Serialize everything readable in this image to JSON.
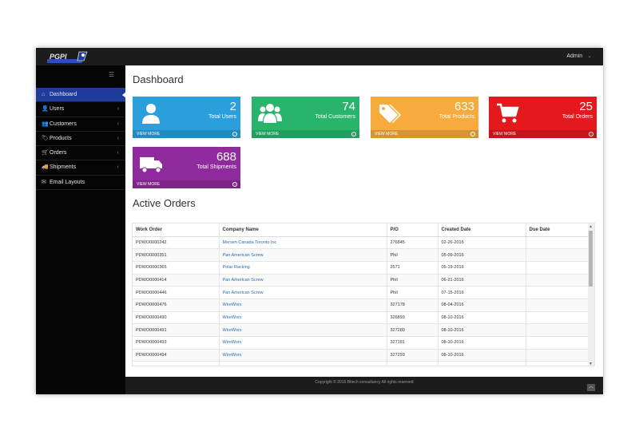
{
  "header": {
    "user_label": "Admin",
    "user_caret": "⌄"
  },
  "sidebar": {
    "items": [
      {
        "label": "Dashboard",
        "icon": "home-icon",
        "glyph": "⌂",
        "active": true,
        "chevron": ""
      },
      {
        "label": "Users",
        "icon": "user-icon",
        "glyph": "👤",
        "active": false,
        "chevron": "‹"
      },
      {
        "label": "Customers",
        "icon": "users-icon",
        "glyph": "👥",
        "active": false,
        "chevron": "‹"
      },
      {
        "label": "Products",
        "icon": "tag-icon",
        "glyph": "🏷",
        "active": false,
        "chevron": "‹"
      },
      {
        "label": "Orders",
        "icon": "cart-icon",
        "glyph": "🛒",
        "active": false,
        "chevron": "‹"
      },
      {
        "label": "Shipments",
        "icon": "truck-icon",
        "glyph": "🚚",
        "active": false,
        "chevron": "‹"
      },
      {
        "label": "Email Layouts",
        "icon": "email-icon",
        "glyph": "✉",
        "active": false,
        "chevron": ""
      }
    ]
  },
  "main": {
    "page_title": "Dashboard",
    "tiles": [
      {
        "value": "2",
        "label": "Total Users",
        "footer": "VIEW MORE",
        "color": "#2a9fdc",
        "icon": "user-icon"
      },
      {
        "value": "74",
        "label": "Total Customers",
        "footer": "VIEW MORE",
        "color": "#28b56b",
        "icon": "users-icon"
      },
      {
        "value": "633",
        "label": "Total Products",
        "footer": "VIEW MORE",
        "color": "#f6ab3c",
        "icon": "tags-icon"
      },
      {
        "value": "25",
        "label": "Total Orders",
        "footer": "VIEW MORE",
        "color": "#e3191e",
        "icon": "cart-icon"
      },
      {
        "value": "688",
        "label": "Total Shipments",
        "footer": "VIEW MORE",
        "color": "#8f2b9c",
        "icon": "truck-icon"
      }
    ],
    "orders_title": "Active Orders",
    "orders_table": {
      "columns": [
        "Work Order",
        "Company Name",
        "P/O",
        "Created Date",
        "Due Date"
      ],
      "rows": [
        [
          "PDWO0000242",
          "Mersen Canada Toronto Inc",
          "276845",
          "02-26-2016",
          ""
        ],
        [
          "PDWO0000351",
          "Pan American Screw",
          "Phil",
          "05-09-2016",
          ""
        ],
        [
          "PDWO0000365",
          "Polar Racking",
          "2571",
          "05-19-2016",
          ""
        ],
        [
          "PDWO0000414",
          "Pan American Screw",
          "Phil",
          "06-21-2016",
          ""
        ],
        [
          "PDWO0000446",
          "Pan American Screw",
          "Phil",
          "07-15-2016",
          ""
        ],
        [
          "PDWO0000476",
          "WireWorx",
          "327178",
          "08-04-2016",
          ""
        ],
        [
          "PDWO0000490",
          "WireWorx",
          "326893",
          "08-10-2016",
          ""
        ],
        [
          "PDWO0000491",
          "WireWorx",
          "327289",
          "08-10-2016",
          ""
        ],
        [
          "PDWO0000493",
          "WireWorx",
          "327181",
          "08-10-2016",
          ""
        ],
        [
          "PDWO0000494",
          "WireWorx",
          "327293",
          "08-10-2016",
          ""
        ],
        [
          "",
          "",
          "",
          "",
          ""
        ]
      ]
    }
  },
  "footer": {
    "copyright": "Copyright © 2016 Bitech consultancy All rights reserved"
  }
}
